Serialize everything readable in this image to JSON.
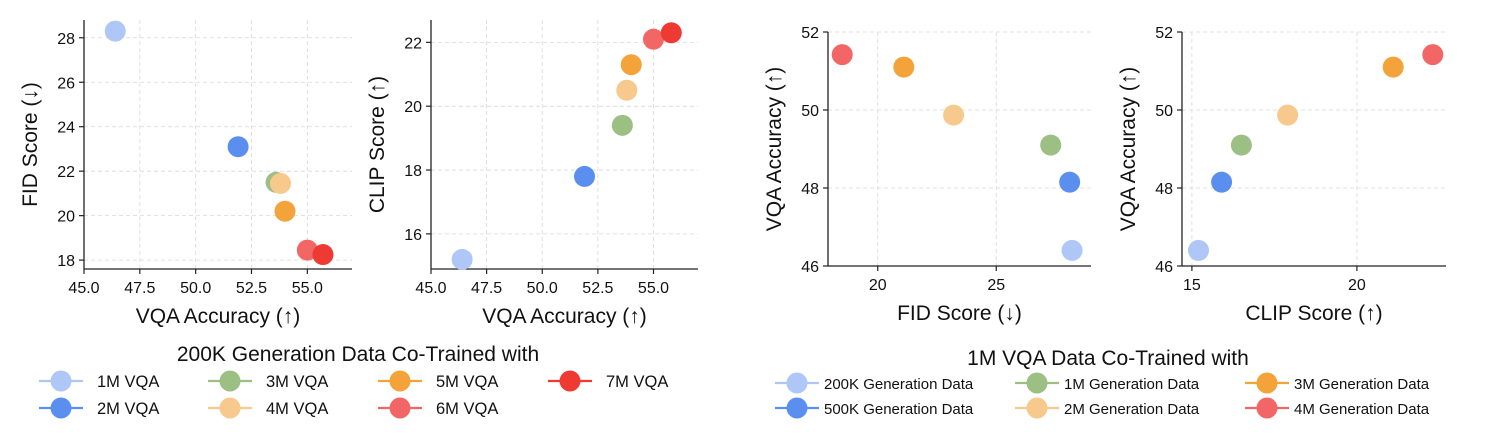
{
  "chart_data": [
    {
      "type": "scatter",
      "group": "left",
      "xlabel": "VQA Accuracy (↑)",
      "ylabel": "FID Score (↓)",
      "xlim": [
        45.0,
        57.0
      ],
      "ylim": [
        17.6,
        28.8
      ],
      "xticks": [
        45.0,
        47.5,
        50.0,
        52.5,
        55.0
      ],
      "xtick_labels": [
        "45.0",
        "47.5",
        "50.0",
        "52.5",
        "55.0"
      ],
      "yticks": [
        18,
        20,
        22,
        24,
        26,
        28
      ],
      "ytick_labels": [
        "18",
        "20",
        "22",
        "24",
        "26",
        "28"
      ],
      "grid": true,
      "series": [
        {
          "name": "1M VQA",
          "color": "#aec7f7",
          "x": [
            46.4
          ],
          "y": [
            28.3
          ]
        },
        {
          "name": "2M VQA",
          "color": "#5a8ff0",
          "x": [
            51.9
          ],
          "y": [
            23.1
          ]
        },
        {
          "name": "3M VQA",
          "color": "#9cbf84",
          "x": [
            53.6
          ],
          "y": [
            21.5
          ]
        },
        {
          "name": "4M VQA",
          "color": "#f7c98d",
          "x": [
            53.8
          ],
          "y": [
            21.45
          ]
        },
        {
          "name": "5M VQA",
          "color": "#f3a33a",
          "x": [
            54.0
          ],
          "y": [
            20.2
          ]
        },
        {
          "name": "6M VQA",
          "color": "#f26666",
          "x": [
            55.0
          ],
          "y": [
            18.45
          ]
        },
        {
          "name": "7M VQA",
          "color": "#ee3a32",
          "x": [
            55.7
          ],
          "y": [
            18.25
          ]
        }
      ]
    },
    {
      "type": "scatter",
      "group": "left",
      "xlabel": "VQA Accuracy (↑)",
      "ylabel": "CLIP Score (↑)",
      "xlim": [
        45.0,
        57.0
      ],
      "ylim": [
        14.9,
        22.7
      ],
      "xticks": [
        45.0,
        47.5,
        50.0,
        52.5,
        55.0
      ],
      "xtick_labels": [
        "45.0",
        "47.5",
        "50.0",
        "52.5",
        "55.0"
      ],
      "yticks": [
        16,
        18,
        20,
        22
      ],
      "ytick_labels": [
        "16",
        "18",
        "20",
        "22"
      ],
      "grid": true,
      "series": [
        {
          "name": "1M VQA",
          "color": "#aec7f7",
          "x": [
            46.4
          ],
          "y": [
            15.2
          ]
        },
        {
          "name": "2M VQA",
          "color": "#5a8ff0",
          "x": [
            51.9
          ],
          "y": [
            17.8
          ]
        },
        {
          "name": "3M VQA",
          "color": "#9cbf84",
          "x": [
            53.6
          ],
          "y": [
            19.4
          ]
        },
        {
          "name": "4M VQA",
          "color": "#f7c98d",
          "x": [
            53.8
          ],
          "y": [
            20.5
          ]
        },
        {
          "name": "5M VQA",
          "color": "#f3a33a",
          "x": [
            54.0
          ],
          "y": [
            21.3
          ]
        },
        {
          "name": "6M VQA",
          "color": "#f26666",
          "x": [
            55.0
          ],
          "y": [
            22.1
          ]
        },
        {
          "name": "7M VQA",
          "color": "#ee3a32",
          "x": [
            55.8
          ],
          "y": [
            22.3
          ]
        }
      ]
    },
    {
      "type": "scatter",
      "group": "right",
      "xlabel": "FID Score (↓)",
      "ylabel": "VQA Accuracy (↑)",
      "xlim": [
        17.9,
        29.0
      ],
      "ylim": [
        46.0,
        52.0
      ],
      "xticks": [
        20,
        25
      ],
      "xtick_labels": [
        "20",
        "25"
      ],
      "yticks": [
        46,
        48,
        50,
        52
      ],
      "ytick_labels": [
        "46",
        "48",
        "50",
        "52"
      ],
      "grid": true,
      "series": [
        {
          "name": "200K Generation Data",
          "color": "#aec7f7",
          "x": [
            28.2
          ],
          "y": [
            46.4
          ]
        },
        {
          "name": "500K Generation Data",
          "color": "#5a8ff0",
          "x": [
            28.1
          ],
          "y": [
            48.15
          ]
        },
        {
          "name": "1M Generation Data",
          "color": "#9cbf84",
          "x": [
            27.3
          ],
          "y": [
            49.1
          ]
        },
        {
          "name": "2M Generation Data",
          "color": "#f7c98d",
          "x": [
            23.2
          ],
          "y": [
            49.87
          ]
        },
        {
          "name": "3M Generation Data",
          "color": "#f3a33a",
          "x": [
            21.1
          ],
          "y": [
            51.1
          ]
        },
        {
          "name": "4M Generation Data",
          "color": "#f26666",
          "x": [
            18.5
          ],
          "y": [
            51.42
          ]
        }
      ]
    },
    {
      "type": "scatter",
      "group": "right",
      "xlabel": "CLIP Score (↑)",
      "ylabel": "VQA Accuracy (↑)",
      "xlim": [
        14.7,
        22.7
      ],
      "ylim": [
        46.0,
        52.0
      ],
      "xticks": [
        15,
        20
      ],
      "xtick_labels": [
        "15",
        "20"
      ],
      "yticks": [
        46,
        48,
        50,
        52
      ],
      "ytick_labels": [
        "46",
        "48",
        "50",
        "52"
      ],
      "grid": true,
      "series": [
        {
          "name": "200K Generation Data",
          "color": "#aec7f7",
          "x": [
            15.2
          ],
          "y": [
            46.4
          ]
        },
        {
          "name": "500K Generation Data",
          "color": "#5a8ff0",
          "x": [
            15.9
          ],
          "y": [
            48.15
          ]
        },
        {
          "name": "1M Generation Data",
          "color": "#9cbf84",
          "x": [
            16.5
          ],
          "y": [
            49.1
          ]
        },
        {
          "name": "2M Generation Data",
          "color": "#f7c98d",
          "x": [
            17.9
          ],
          "y": [
            49.87
          ]
        },
        {
          "name": "3M Generation Data",
          "color": "#f3a33a",
          "x": [
            21.1
          ],
          "y": [
            51.1
          ]
        },
        {
          "name": "4M Generation Data",
          "color": "#f26666",
          "x": [
            22.3
          ],
          "y": [
            51.42
          ]
        }
      ]
    }
  ],
  "legends": {
    "left": {
      "title": "200K Generation Data Co-Trained with",
      "items": [
        {
          "label": "1M VQA",
          "color": "#aec7f7"
        },
        {
          "label": "2M VQA",
          "color": "#5a8ff0"
        },
        {
          "label": "3M VQA",
          "color": "#9cbf84"
        },
        {
          "label": "4M VQA",
          "color": "#f7c98d"
        },
        {
          "label": "5M VQA",
          "color": "#f3a33a"
        },
        {
          "label": "6M VQA",
          "color": "#f26666"
        },
        {
          "label": "7M VQA",
          "color": "#ee3a32"
        }
      ]
    },
    "right": {
      "title": "1M VQA Data Co-Trained with",
      "items": [
        {
          "label": "200K Generation Data",
          "color": "#aec7f7"
        },
        {
          "label": "500K Generation Data",
          "color": "#5a8ff0"
        },
        {
          "label": "1M Generation Data",
          "color": "#9cbf84"
        },
        {
          "label": "2M Generation Data",
          "color": "#f7c98d"
        },
        {
          "label": "3M Generation Data",
          "color": "#f3a33a"
        },
        {
          "label": "4M Generation Data",
          "color": "#f26666"
        }
      ]
    }
  }
}
